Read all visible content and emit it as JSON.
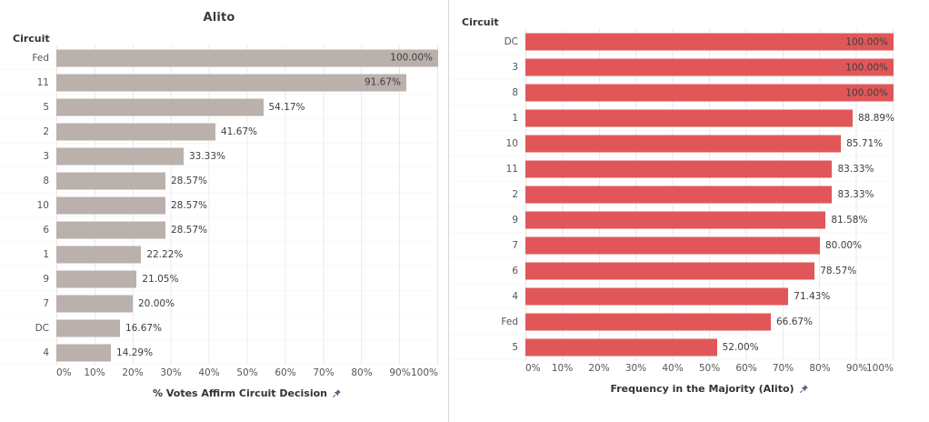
{
  "page": {
    "background": "#ffffff",
    "divider_color": "#d9d9d9",
    "grid_color": "#ebebeb"
  },
  "icons": {
    "axis_pin": "pushpin-icon",
    "pin_color": "#55627C"
  },
  "chart_data": [
    {
      "type": "bar",
      "orientation": "horizontal",
      "title": "Alito",
      "field_label": "Circuit",
      "xlabel": "% Votes Affirm Circuit Decision",
      "xlim": [
        0,
        100
      ],
      "grid": true,
      "legend": "none",
      "bar_color": "#BAB0AC",
      "categories": [
        "Fed",
        "11",
        "5",
        "2",
        "3",
        "8",
        "10",
        "6",
        "1",
        "9",
        "7",
        "DC",
        "4"
      ],
      "values": [
        100.0,
        91.67,
        54.17,
        41.67,
        33.33,
        28.57,
        28.57,
        28.57,
        22.22,
        21.05,
        20.0,
        16.67,
        14.29
      ],
      "value_labels": [
        "100.00%",
        "91.67%",
        "54.17%",
        "41.67%",
        "33.33%",
        "28.57%",
        "28.57%",
        "28.57%",
        "22.22%",
        "21.05%",
        "20.00%",
        "16.67%",
        "14.29%"
      ],
      "x_tick_labels": [
        "0%",
        "10%",
        "20%",
        "30%",
        "40%",
        "50%",
        "60%",
        "70%",
        "80%",
        "90%",
        "100%"
      ],
      "inside_label_min": 90
    },
    {
      "type": "bar",
      "orientation": "horizontal",
      "title": "",
      "field_label": "Circuit",
      "xlabel": "Frequency in the Majority (Alito)",
      "xlim": [
        0,
        100
      ],
      "grid": true,
      "legend": "none",
      "bar_color": "#E15759",
      "categories": [
        "DC",
        "3",
        "8",
        "1",
        "10",
        "11",
        "2",
        "9",
        "7",
        "6",
        "4",
        "Fed",
        "5"
      ],
      "values": [
        100.0,
        100.0,
        100.0,
        88.89,
        85.71,
        83.33,
        83.33,
        81.58,
        80.0,
        78.57,
        71.43,
        66.67,
        52.0
      ],
      "value_labels": [
        "100.00%",
        "100.00%",
        "100.00%",
        "88.89%",
        "85.71%",
        "83.33%",
        "83.33%",
        "81.58%",
        "80.00%",
        "78.57%",
        "71.43%",
        "66.67%",
        "52.00%"
      ],
      "x_tick_labels": [
        "0%",
        "10%",
        "20%",
        "30%",
        "40%",
        "50%",
        "60%",
        "70%",
        "80%",
        "90%",
        "100%"
      ],
      "inside_label_min": 90
    }
  ]
}
